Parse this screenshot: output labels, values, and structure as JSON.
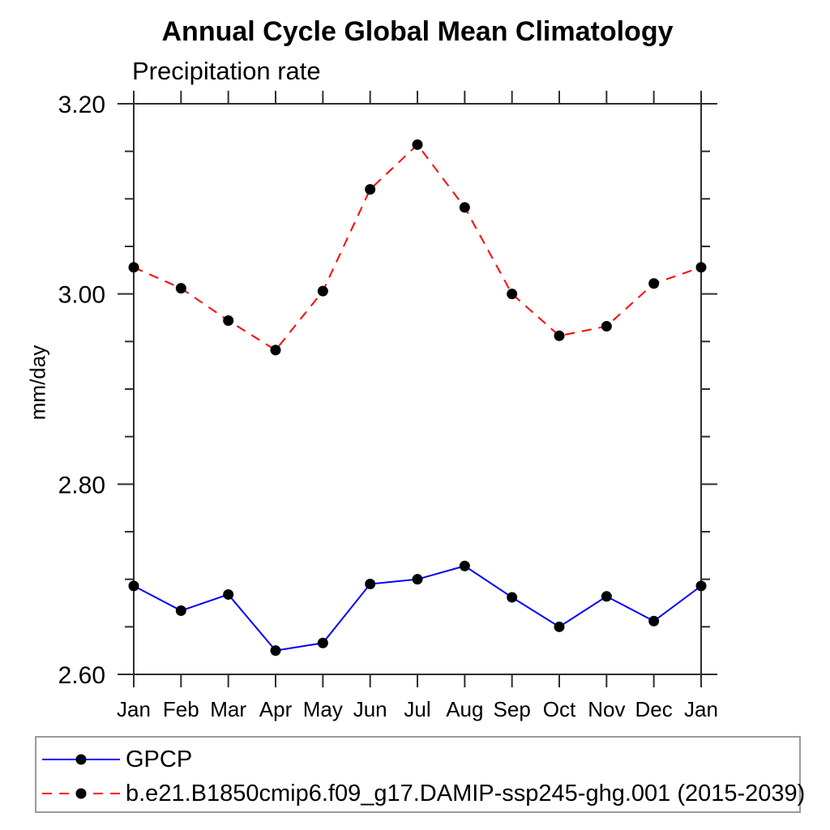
{
  "chart_data": {
    "type": "line",
    "title": "Annual Cycle Global Mean Climatology",
    "subtitle": "Precipitation rate",
    "ylabel": "mm/day",
    "categories": [
      "Jan",
      "Feb",
      "Mar",
      "Apr",
      "May",
      "Jun",
      "Jul",
      "Aug",
      "Sep",
      "Oct",
      "Nov",
      "Dec",
      "Jan"
    ],
    "ylim": [
      2.6,
      3.2
    ],
    "y_tick_values": [
      3.2,
      3.0,
      2.8,
      2.6
    ],
    "y_tick_labels": [
      "3.20",
      "3.00",
      "2.80",
      "2.60"
    ],
    "y_minor_step": 0.05,
    "grid": false,
    "legend_position": "bottom",
    "axis_color": "#2e2e2e",
    "series": [
      {
        "name": "GPCP",
        "color": "#0000ff",
        "line_style": "solid",
        "marker": "circle",
        "marker_color": "#000000",
        "values": [
          2.693,
          2.667,
          2.684,
          2.625,
          2.633,
          2.695,
          2.7,
          2.714,
          2.681,
          2.65,
          2.682,
          2.656,
          2.693
        ]
      },
      {
        "name": "b.e21.B1850cmip6.f09_g17.DAMIP-ssp245-ghg.001 (2015-2039)",
        "color": "#ff0000",
        "line_style": "dashed",
        "marker": "circle",
        "marker_color": "#000000",
        "values": [
          3.028,
          3.006,
          2.972,
          2.941,
          3.003,
          3.11,
          3.157,
          3.091,
          3.0,
          2.956,
          2.966,
          3.011,
          3.028
        ]
      }
    ]
  }
}
